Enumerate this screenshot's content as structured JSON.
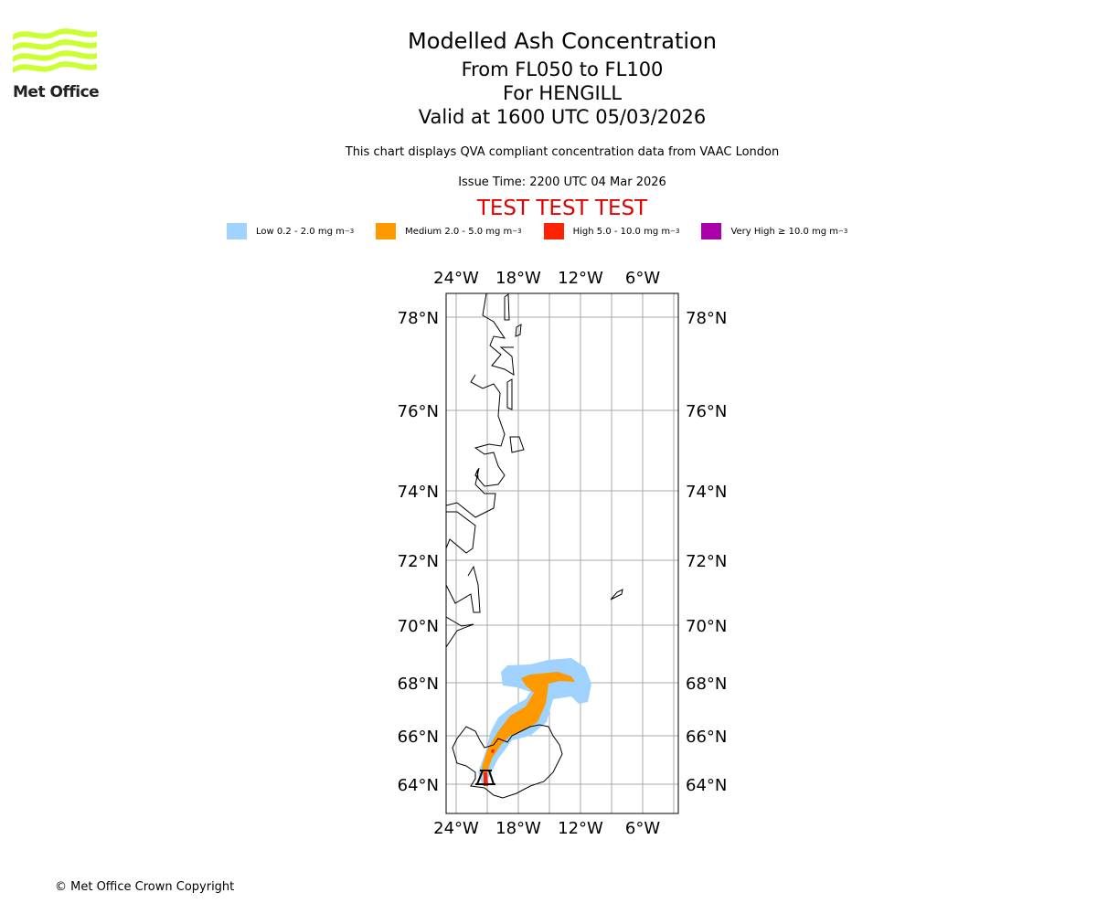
{
  "header": {
    "title": "Modelled Ash Concentration",
    "level": "From FL050 to FL100",
    "volcano": "For HENGILL",
    "valid": "Valid at 1600 UTC 05/03/2026",
    "description": "This chart displays QVA compliant concentration data from VAAC London",
    "issue_time": "Issue Time: 2200 UTC 04 Mar 2026",
    "test_banner": "TEST TEST TEST"
  },
  "logo": {
    "text": "Met Office",
    "color": "#ccff33"
  },
  "legend": [
    {
      "label": "Low 0.2 - 2.0 mg m",
      "sup": "−3",
      "color": "#a0d2ff"
    },
    {
      "label": "Medium 2.0 - 5.0 mg m",
      "sup": "−3",
      "color": "#ff9900"
    },
    {
      "label": "High 5.0 - 10.0 mg m",
      "sup": "−3",
      "color": "#ff2200"
    },
    {
      "label": "Very High  ≥  10.0 mg m",
      "sup": "−3",
      "color": "#aa00aa"
    }
  ],
  "map": {
    "lon_labels": [
      "24°W",
      "18°W",
      "12°W",
      "6°W"
    ],
    "lat_labels": [
      "78°N",
      "76°N",
      "74°N",
      "72°N",
      "70°N",
      "68°N",
      "66°N",
      "64°N"
    ]
  },
  "footer": {
    "copyright": "© Met Office Crown Copyright"
  }
}
